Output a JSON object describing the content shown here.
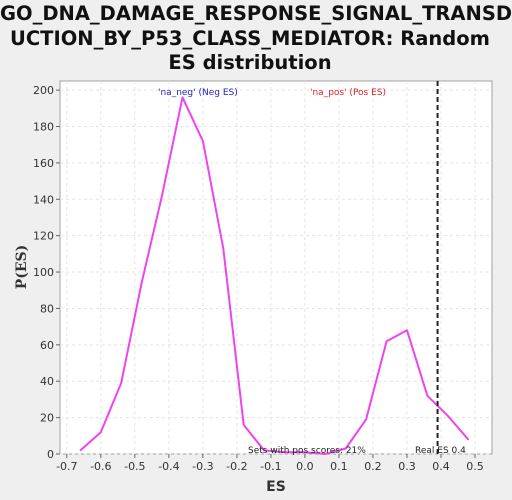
{
  "title": "GO_DNA_DAMAGE_RESPONSE_SIGNAL_TRANSD\nUCTION_BY_P53_CLASS_MEDIATOR: Random\nES distribution",
  "chart_data": {
    "type": "line",
    "xlabel": "ES",
    "ylabel": "P(ES)",
    "xlim": [
      -0.72,
      0.55
    ],
    "ylim": [
      0,
      205
    ],
    "xticks": [
      -0.7,
      -0.6,
      -0.5,
      -0.4,
      -0.3,
      -0.2,
      -0.1,
      0.0,
      0.1,
      0.2,
      0.3,
      0.4,
      0.5
    ],
    "xtick_labels": [
      "-0.7",
      "-0.6",
      "-0.5",
      "-0.4",
      "-0.3",
      "-0.2",
      "-0.1",
      "0.0",
      "0.1",
      "0.2",
      "0.3",
      "0.4",
      "0.5"
    ],
    "yticks": [
      0,
      20,
      40,
      60,
      80,
      100,
      120,
      140,
      160,
      180,
      200
    ],
    "ytick_labels": [
      "0",
      "20",
      "40",
      "60",
      "80",
      "100",
      "120",
      "140",
      "160",
      "180",
      "200"
    ],
    "grid": true,
    "line_color": "#ee44ee",
    "series": [
      {
        "x": [
          -0.66,
          -0.6,
          -0.54,
          -0.48,
          -0.42,
          -0.36,
          -0.3,
          -0.24,
          -0.18,
          -0.12,
          -0.06,
          0.0,
          0.06,
          0.12,
          0.18,
          0.24,
          0.3,
          0.36,
          0.42,
          0.48
        ],
        "values": [
          2,
          12,
          39,
          94,
          142,
          196,
          172,
          113,
          16,
          2,
          1,
          1,
          0,
          3,
          19,
          62,
          68,
          32,
          21,
          8
        ]
      }
    ],
    "real_es": 0.39,
    "annotations": {
      "neg": "'na_neg' (Neg ES)",
      "pos": "'na_pos' (Pos ES)",
      "sets_with_pos": "Sets with pos scores: 21%",
      "real_es": "Real ES 0.4"
    },
    "annotation_colors": {
      "neg": "#2222cc",
      "pos": "#dd2222",
      "other": "#222222"
    }
  }
}
